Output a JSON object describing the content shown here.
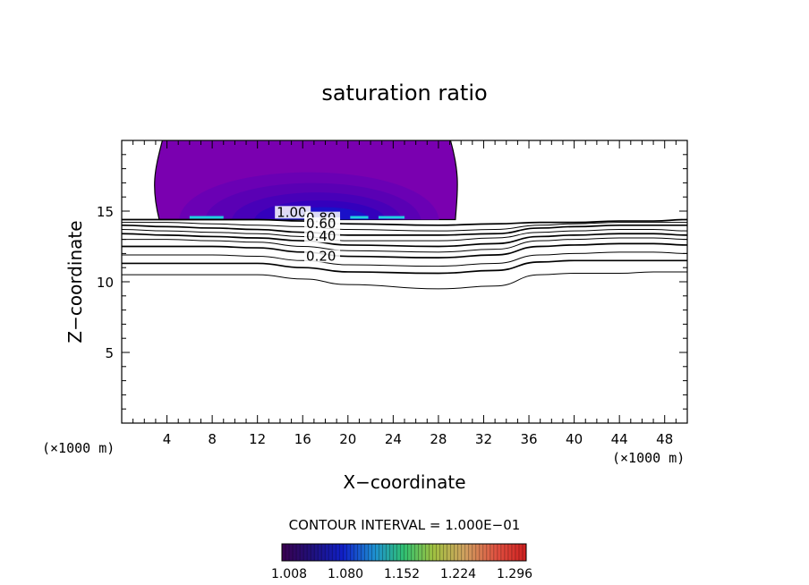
{
  "chart_data": {
    "type": "contour",
    "title": "saturation ratio",
    "xlabel": "X−coordinate",
    "ylabel": "Z−coordinate",
    "x_unit_label": "(×1000 m)",
    "y_unit_label": "(×1000 m)",
    "xlim": [
      0,
      50
    ],
    "ylim": [
      0,
      20
    ],
    "x_ticks": [
      4,
      8,
      12,
      16,
      20,
      24,
      28,
      32,
      36,
      40,
      44,
      48
    ],
    "y_ticks": [
      5,
      10,
      15
    ],
    "contour_interval_text": "CONTOUR INTERVAL = 1.000E−01",
    "contour_labels": [
      {
        "text": "1.00",
        "x": 13.7,
        "z": 14.6
      },
      {
        "text": "0.80",
        "x": 16.3,
        "z": 14.2
      },
      {
        "text": "0.60",
        "x": 16.3,
        "z": 13.8
      },
      {
        "text": "0.40",
        "x": 16.3,
        "z": 12.9
      },
      {
        "text": "0.20",
        "x": 16.3,
        "z": 11.5
      }
    ],
    "colorbar": {
      "tick_labels": [
        "1.008",
        "1.080",
        "1.152",
        "1.224",
        "1.296"
      ],
      "range": [
        1.008,
        1.32
      ]
    },
    "shaded_region": {
      "x_range": [
        3.0,
        29.5
      ],
      "z_range": [
        14.4,
        20.0
      ],
      "min_value": 1.008,
      "max_value": 1.1
    },
    "isolines": [
      {
        "level": 1.0,
        "z": [
          14.4,
          14.4,
          14.4,
          14.4,
          14.3,
          14.1,
          14.0,
          14.1,
          14.2,
          14.2,
          14.3,
          14.3,
          14.4
        ]
      },
      {
        "level": 0.9,
        "z": [
          14.2,
          14.2,
          14.1,
          14.0,
          13.9,
          13.7,
          13.6,
          13.7,
          14.0,
          14.1,
          14.2,
          14.2,
          14.2
        ]
      },
      {
        "level": 0.8,
        "z": [
          14.0,
          13.9,
          13.8,
          13.7,
          13.5,
          13.3,
          13.3,
          13.4,
          13.8,
          13.9,
          14.0,
          14.0,
          14.0
        ]
      },
      {
        "level": 0.7,
        "z": [
          13.7,
          13.6,
          13.5,
          13.4,
          13.2,
          12.9,
          12.9,
          13.1,
          13.5,
          13.6,
          13.7,
          13.7,
          13.6
        ]
      },
      {
        "level": 0.6,
        "z": [
          13.4,
          13.3,
          13.2,
          13.1,
          12.9,
          12.6,
          12.5,
          12.7,
          13.2,
          13.3,
          13.4,
          13.4,
          13.3
        ]
      },
      {
        "level": 0.5,
        "z": [
          13.0,
          13.0,
          12.9,
          12.8,
          12.5,
          12.2,
          12.1,
          12.3,
          12.9,
          13.0,
          13.1,
          13.1,
          13.0
        ]
      },
      {
        "level": 0.4,
        "z": [
          12.5,
          12.5,
          12.5,
          12.4,
          12.1,
          11.8,
          11.7,
          11.9,
          12.5,
          12.6,
          12.7,
          12.7,
          12.6
        ]
      },
      {
        "level": 0.3,
        "z": [
          11.9,
          11.9,
          11.9,
          11.8,
          11.5,
          11.2,
          11.1,
          11.3,
          11.9,
          12.0,
          12.1,
          12.1,
          12.0
        ]
      },
      {
        "level": 0.2,
        "z": [
          11.3,
          11.3,
          11.3,
          11.3,
          11.0,
          10.7,
          10.6,
          10.8,
          11.4,
          11.5,
          11.5,
          11.5,
          11.5
        ]
      },
      {
        "level": 0.1,
        "z": [
          10.5,
          10.5,
          10.5,
          10.5,
          10.2,
          9.8,
          9.5,
          9.7,
          10.5,
          10.6,
          10.6,
          10.7,
          10.7
        ]
      }
    ],
    "isoline_x": [
      0,
      4,
      8,
      12,
      16,
      20,
      28,
      33,
      37,
      40,
      44,
      47,
      50
    ],
    "colors": {
      "shade_outer": "#7a00b0",
      "shade_mid": "#4d00b0",
      "shade_inner": "#1a10c8",
      "highlight": "#20d0e0",
      "line": "#000000"
    }
  }
}
